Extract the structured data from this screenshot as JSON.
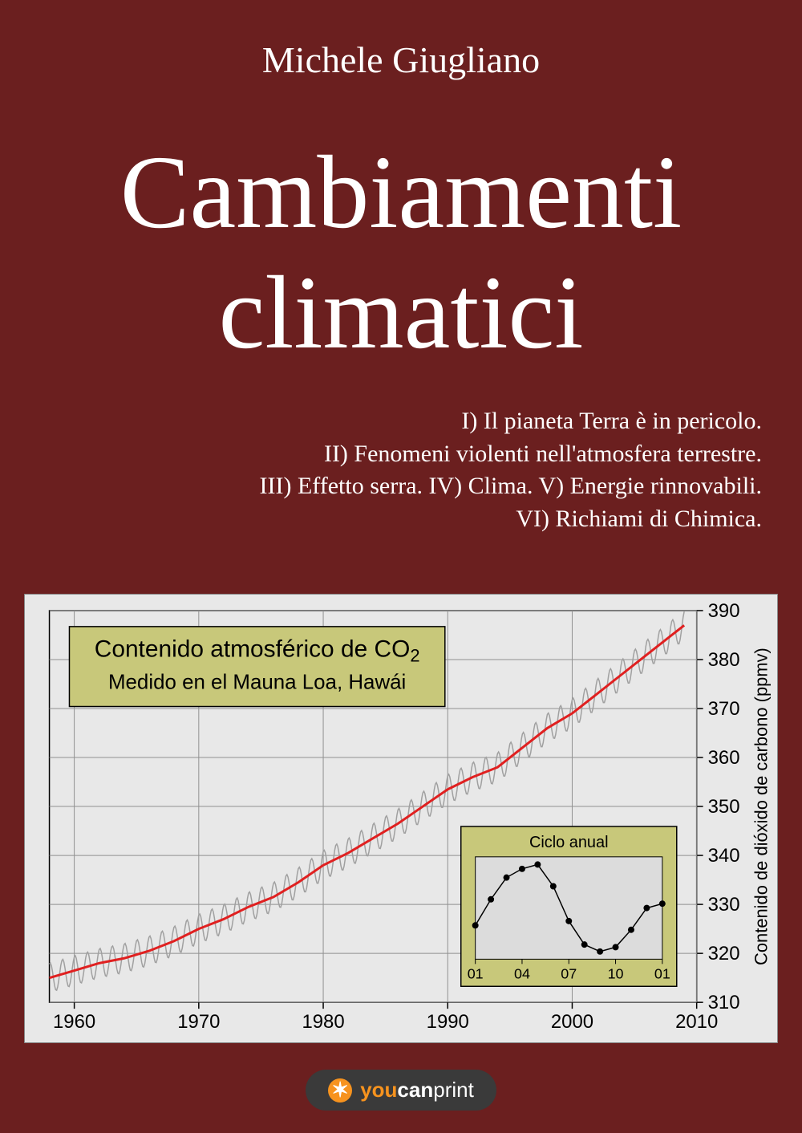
{
  "author": "Michele Giugliano",
  "title_line1": "Cambiamenti",
  "title_line2": "climatici",
  "subtitles": [
    "I) Il pianeta Terra è in pericolo.",
    "II) Fenomeni violenti nell'atmosfera terrestre.",
    "III) Effetto serra. IV) Clima. V) Energie rinnovabili.",
    "VI) Richiami di Chimica."
  ],
  "chart": {
    "type": "line",
    "background_color": "#e8e8e8",
    "plot_bg": "#e8e8e8",
    "grid_color": "#909090",
    "border_color": "#000000",
    "title_box_bg": "#c8c87a",
    "title_box_border": "#000000",
    "title_line1": "Contenido atmosférico de CO",
    "title_sub": "2",
    "title_line2": "Medido en el Mauna Loa, Hawái",
    "title_fontsize": 30,
    "title_sub_fontsize": 22,
    "xlabel_ticks": [
      "1960",
      "1970",
      "1980",
      "1990",
      "2000",
      "2010"
    ],
    "ylabel_ticks": [
      "310",
      "320",
      "330",
      "340",
      "350",
      "360",
      "370",
      "380",
      "390"
    ],
    "y_axis_title": "Contenido de dióxido de carbono (ppmv)",
    "y_axis_title_fontsize": 22,
    "tick_fontsize": 24,
    "xlim": [
      1958,
      2010
    ],
    "ylim": [
      310,
      390
    ],
    "trend_line_color": "#e02020",
    "trend_line_width": 3,
    "oscillation_color": "#a0a0a0",
    "oscillation_width": 1.5,
    "oscillation_amplitude": 3,
    "trend_points": [
      [
        1958,
        315
      ],
      [
        1960,
        316.5
      ],
      [
        1962,
        318
      ],
      [
        1964,
        319
      ],
      [
        1966,
        320.5
      ],
      [
        1968,
        322.5
      ],
      [
        1970,
        325
      ],
      [
        1972,
        327
      ],
      [
        1974,
        329.5
      ],
      [
        1976,
        331.5
      ],
      [
        1978,
        334.5
      ],
      [
        1980,
        338
      ],
      [
        1982,
        340.5
      ],
      [
        1984,
        343.5
      ],
      [
        1986,
        346.5
      ],
      [
        1988,
        350
      ],
      [
        1990,
        353.5
      ],
      [
        1992,
        356
      ],
      [
        1994,
        358
      ],
      [
        1996,
        362
      ],
      [
        1998,
        366
      ],
      [
        2000,
        369
      ],
      [
        2002,
        373
      ],
      [
        2004,
        377
      ],
      [
        2006,
        381
      ],
      [
        2008,
        385
      ],
      [
        2009,
        387
      ]
    ],
    "inset": {
      "bg": "#c8c87a",
      "border": "#000000",
      "title": "Ciclo anual",
      "title_fontsize": 20,
      "xticks": [
        "01",
        "04",
        "07",
        "10",
        "01"
      ],
      "tick_fontsize": 18,
      "marker_color": "#000000",
      "line_color": "#000000",
      "points": [
        [
          0,
          0.3
        ],
        [
          1,
          0.6
        ],
        [
          2,
          0.85
        ],
        [
          3,
          0.95
        ],
        [
          4,
          1.0
        ],
        [
          5,
          0.75
        ],
        [
          6,
          0.35
        ],
        [
          7,
          0.08
        ],
        [
          8,
          0.0
        ],
        [
          9,
          0.05
        ],
        [
          10,
          0.25
        ],
        [
          11,
          0.5
        ],
        [
          12,
          0.55
        ]
      ]
    }
  },
  "publisher": {
    "you": "you",
    "can": "can",
    "print": "print"
  },
  "colors": {
    "cover_bg": "#6b1f1f",
    "text": "#ffffff",
    "accent_orange": "#f7931e"
  }
}
